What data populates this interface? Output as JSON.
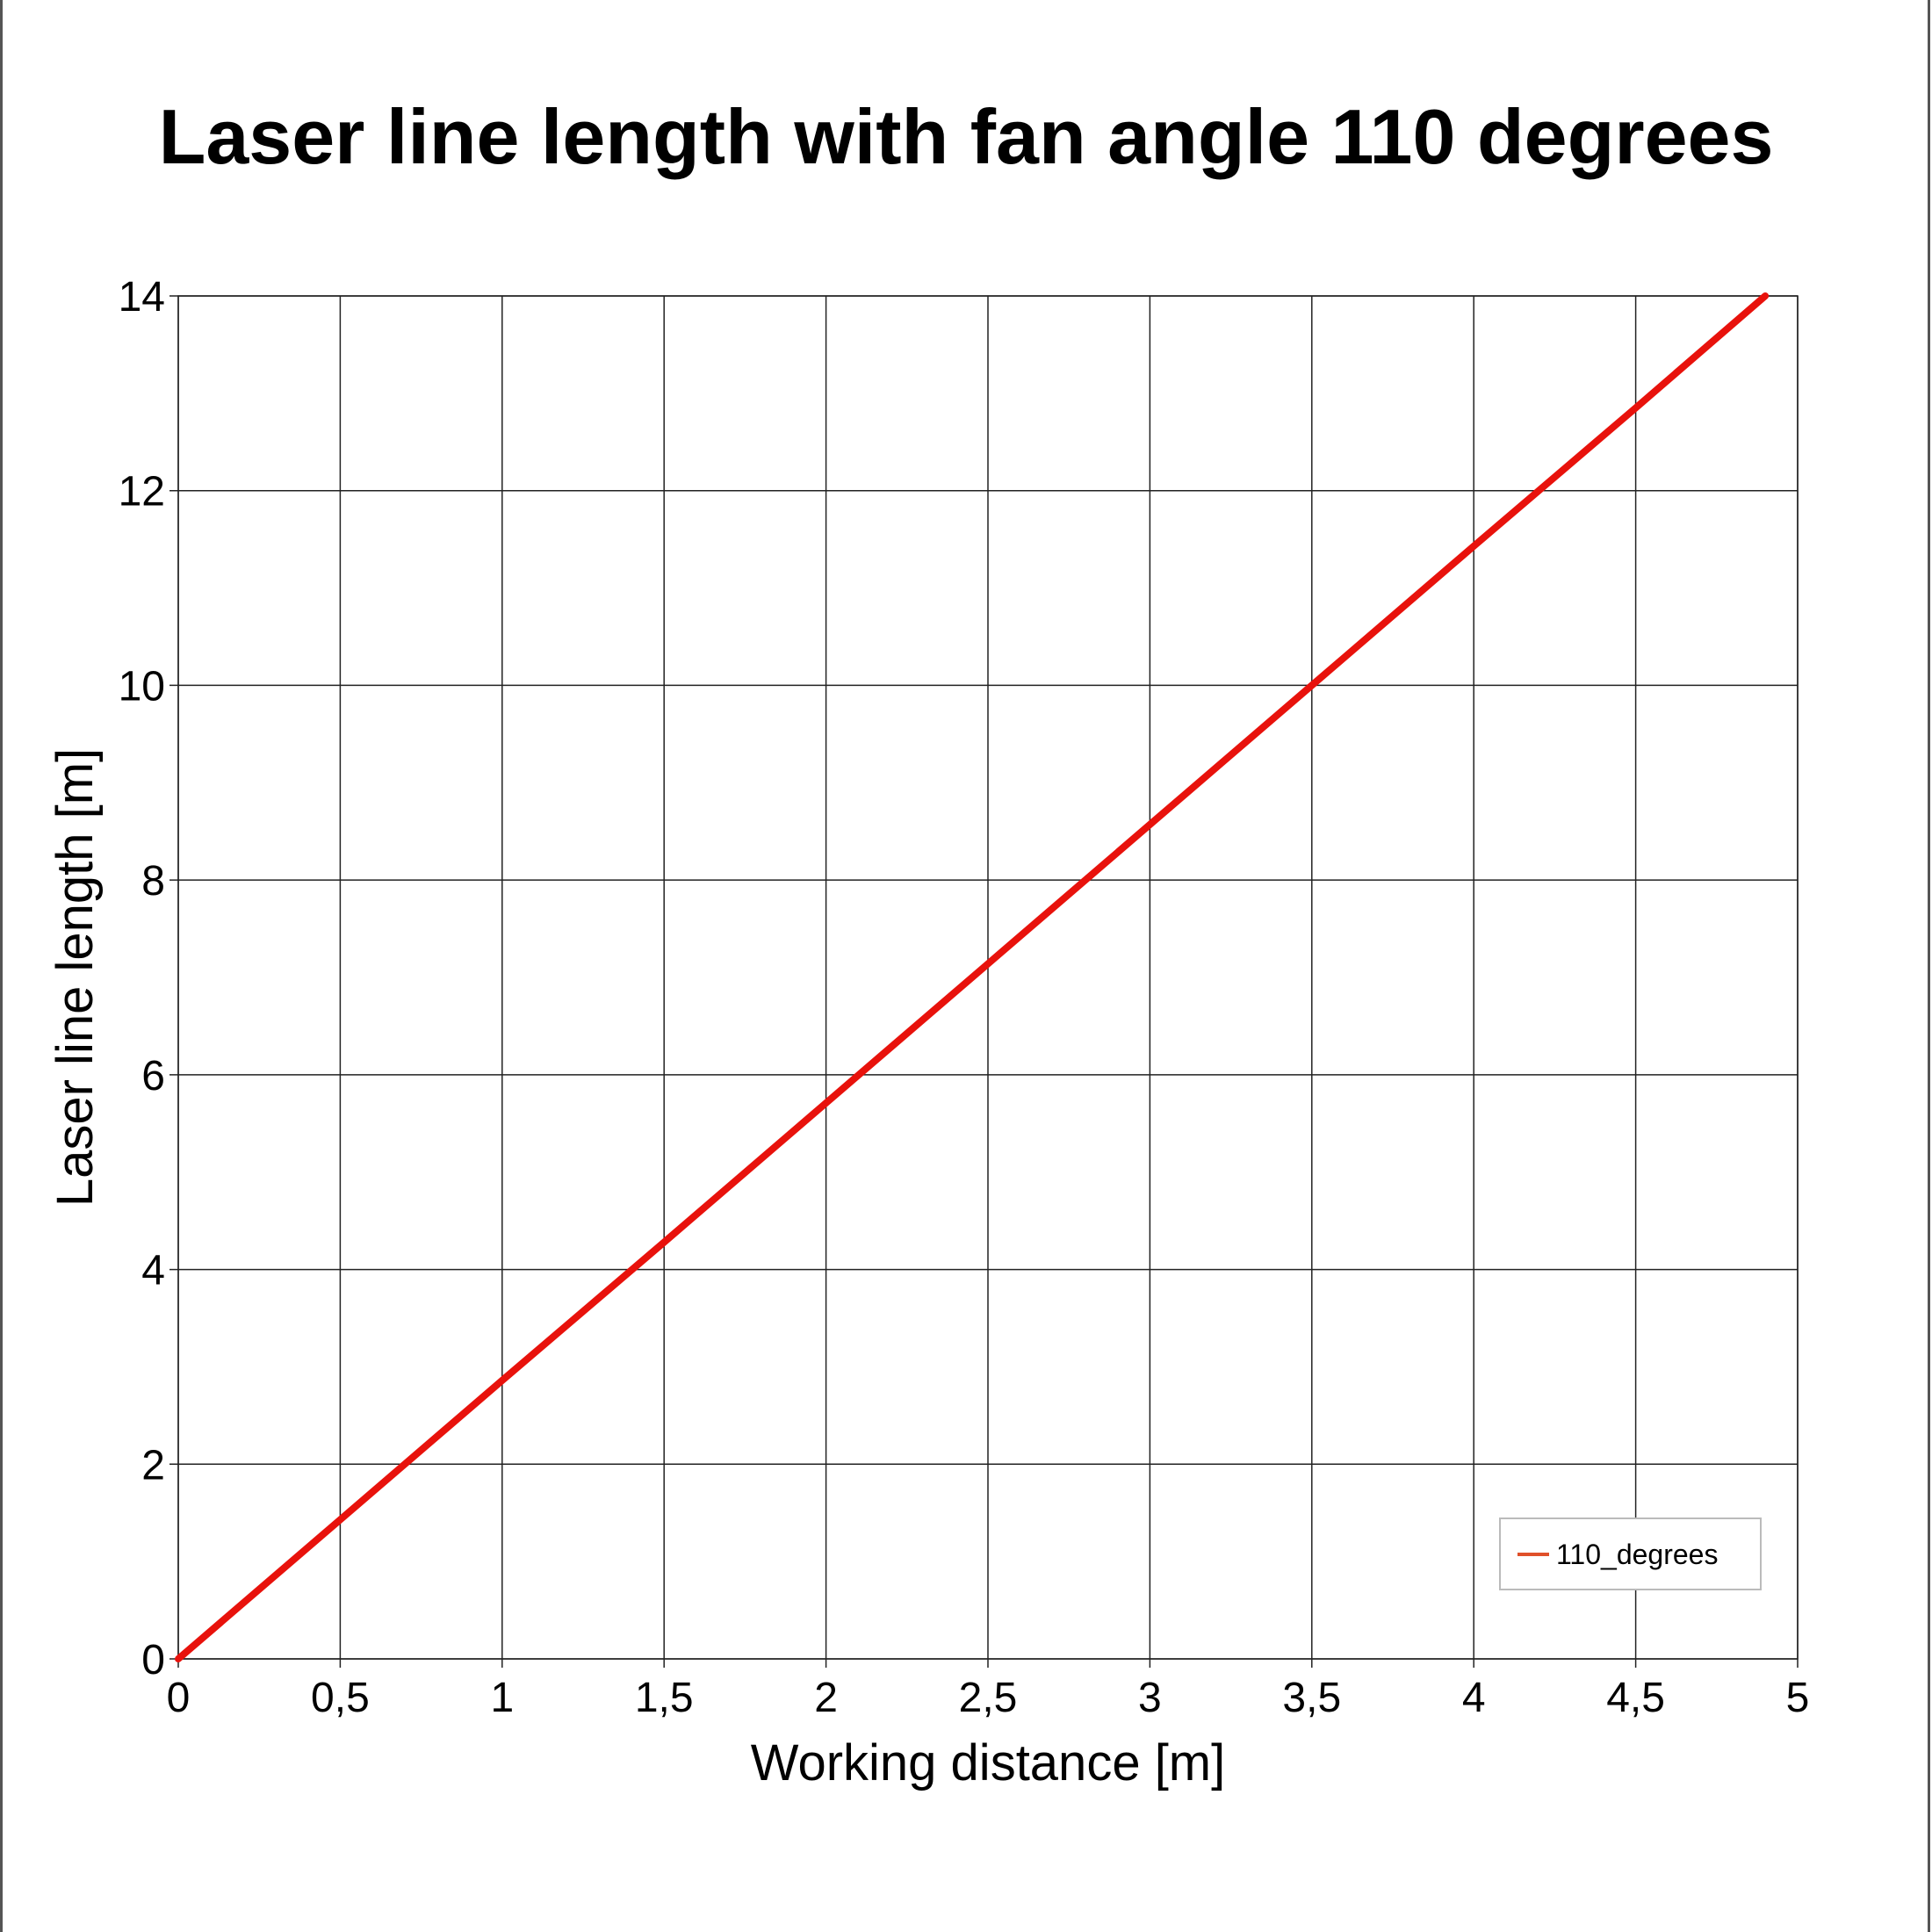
{
  "chart_data": {
    "type": "line",
    "title": "Laser line length with fan angle 110 degrees",
    "xlabel": "Working distance [m]",
    "ylabel": "Laser line length [m]",
    "xlim": [
      0,
      5
    ],
    "ylim": [
      0,
      14
    ],
    "xticks": [
      0,
      0.5,
      1,
      1.5,
      2,
      2.5,
      3,
      3.5,
      4,
      4.5,
      5
    ],
    "xtick_labels": [
      "0",
      "0,5",
      "1",
      "1,5",
      "2",
      "2,5",
      "3",
      "3,5",
      "4",
      "4,5",
      "5"
    ],
    "yticks": [
      0,
      2,
      4,
      6,
      8,
      10,
      12,
      14
    ],
    "ytick_labels": [
      "0",
      "2",
      "4",
      "6",
      "8",
      "10",
      "12",
      "14"
    ],
    "grid": true,
    "legend_position": "bottom-right",
    "series": [
      {
        "name": "110_degrees",
        "color": "#e8120c",
        "legend_color": "#e0502a",
        "x": [
          0,
          0.5,
          1,
          1.5,
          2,
          2.5,
          3,
          3.5,
          4,
          4.5,
          4.9
        ],
        "y": [
          0,
          1.43,
          2.86,
          4.28,
          5.71,
          7.14,
          8.57,
          10.0,
          11.43,
          12.85,
          14.0
        ]
      }
    ]
  }
}
